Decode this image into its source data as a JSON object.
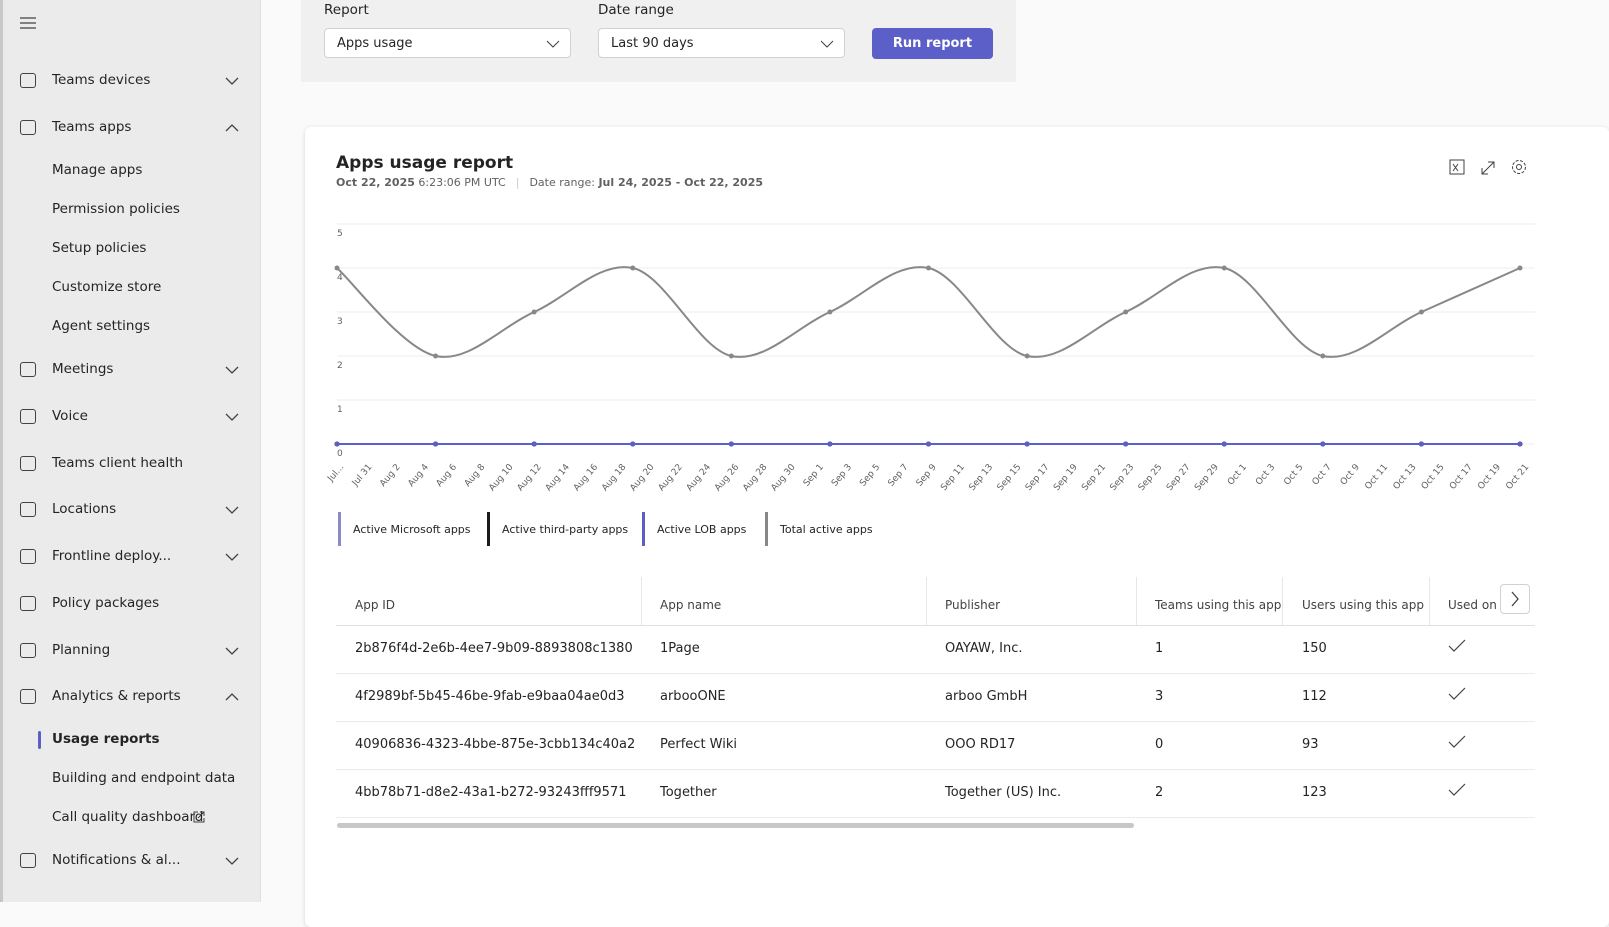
{
  "nav": [
    {
      "label": "Teams devices",
      "level": 1,
      "chevron": "down"
    },
    {
      "label": "Teams apps",
      "level": 1,
      "chevron": "up"
    },
    {
      "label": "Manage apps",
      "level": 2
    },
    {
      "label": "Permission policies",
      "level": 2
    },
    {
      "label": "Setup policies",
      "level": 2
    },
    {
      "label": "Customize store",
      "level": 2
    },
    {
      "label": "Agent settings",
      "level": 2
    },
    {
      "label": "Meetings",
      "level": 1,
      "chevron": "down"
    },
    {
      "label": "Voice",
      "level": 1,
      "chevron": "down"
    },
    {
      "label": "Teams client health",
      "level": 1
    },
    {
      "label": "Locations",
      "level": 1,
      "chevron": "down"
    },
    {
      "label": "Frontline deploy...",
      "level": 1,
      "chevron": "down"
    },
    {
      "label": "Policy packages",
      "level": 1
    },
    {
      "label": "Planning",
      "level": 1,
      "chevron": "down"
    },
    {
      "label": "Analytics & reports",
      "level": 1,
      "chevron": "up"
    },
    {
      "label": "Usage reports",
      "level": 2,
      "selected": true
    },
    {
      "label": "Building and endpoint data",
      "level": 2
    },
    {
      "label": "Call quality dashboard",
      "level": 2,
      "external": true
    },
    {
      "label": "Notifications & al...",
      "level": 1,
      "chevron": "down"
    }
  ],
  "form": {
    "report_label": "Report",
    "report_value": "Apps usage",
    "range_label": "Date range",
    "range_value": "Last 90 days",
    "button": "Run report"
  },
  "report": {
    "title": "Apps usage report",
    "date": "Oct 22, 2025",
    "time": "6:23:06 PM UTC",
    "range_label": "Date range:",
    "range": "Jul 24, 2025 - Oct 22, 2025"
  },
  "chart_data": {
    "type": "line",
    "xticks": [
      "Jul...",
      "Jul 31",
      "Aug 2",
      "Aug 4",
      "Aug 6",
      "Aug 8",
      "Aug 10",
      "Aug 12",
      "Aug 14",
      "Aug 16",
      "Aug 18",
      "Aug 20",
      "Aug 22",
      "Aug 24",
      "Aug 26",
      "Aug 28",
      "Aug 30",
      "Sep 1",
      "Sep 3",
      "Sep 5",
      "Sep 7",
      "Sep 9",
      "Sep 11",
      "Sep 13",
      "Sep 15",
      "Sep 17",
      "Sep 19",
      "Sep 21",
      "Sep 23",
      "Sep 25",
      "Sep 27",
      "Sep 29",
      "Oct 1",
      "Oct 3",
      "Oct 5",
      "Oct 7",
      "Oct 9",
      "Oct 11",
      "Oct 13",
      "Oct 15",
      "Oct 17",
      "Oct 19",
      "Oct 21"
    ],
    "ylim": [
      0,
      5
    ],
    "yticks": [
      0,
      1,
      2,
      3,
      4,
      5
    ],
    "grid": true,
    "series": [
      {
        "name": "Active Microsoft apps",
        "color": "#8b8cc7",
        "values": [
          0,
          0,
          0,
          0,
          0,
          0,
          0,
          0,
          0,
          0,
          0,
          0,
          0
        ]
      },
      {
        "name": "Active third-party apps",
        "color": "#1b1b1b",
        "values": [
          0,
          0,
          0,
          0,
          0,
          0,
          0,
          0,
          0,
          0,
          0,
          0,
          0
        ]
      },
      {
        "name": "Active LOB apps",
        "color": "#5b5fc7",
        "values": [
          0,
          0,
          0,
          0,
          0,
          0,
          0,
          0,
          0,
          0,
          0,
          0,
          0
        ]
      },
      {
        "name": "Total active apps",
        "color": "#8a8886",
        "values": [
          4,
          2,
          3,
          4,
          2,
          3,
          4,
          2,
          3,
          4,
          2,
          3,
          4
        ]
      }
    ]
  },
  "table": {
    "columns": [
      "App ID",
      "App name",
      "Publisher",
      "Teams using this app",
      "Users using this app",
      "Used on W"
    ],
    "rows": [
      [
        "2b876f4d-2e6b-4ee7-9b09-8893808c1380",
        "1Page",
        "OAYAW, Inc.",
        "1",
        "150"
      ],
      [
        "4f2989bf-5b45-46be-9fab-e9baa04ae0d3",
        "arbooONE",
        "arboo GmbH",
        "3",
        "112"
      ],
      [
        "40906836-4323-4bbe-875e-3cbb134c40a2",
        "Perfect Wiki",
        "OOO RD17",
        "0",
        "93"
      ],
      [
        "4bb78b71-d8e2-43a1-b272-93243fff9571",
        "Together",
        "Together (US) Inc.",
        "2",
        "123"
      ]
    ]
  }
}
